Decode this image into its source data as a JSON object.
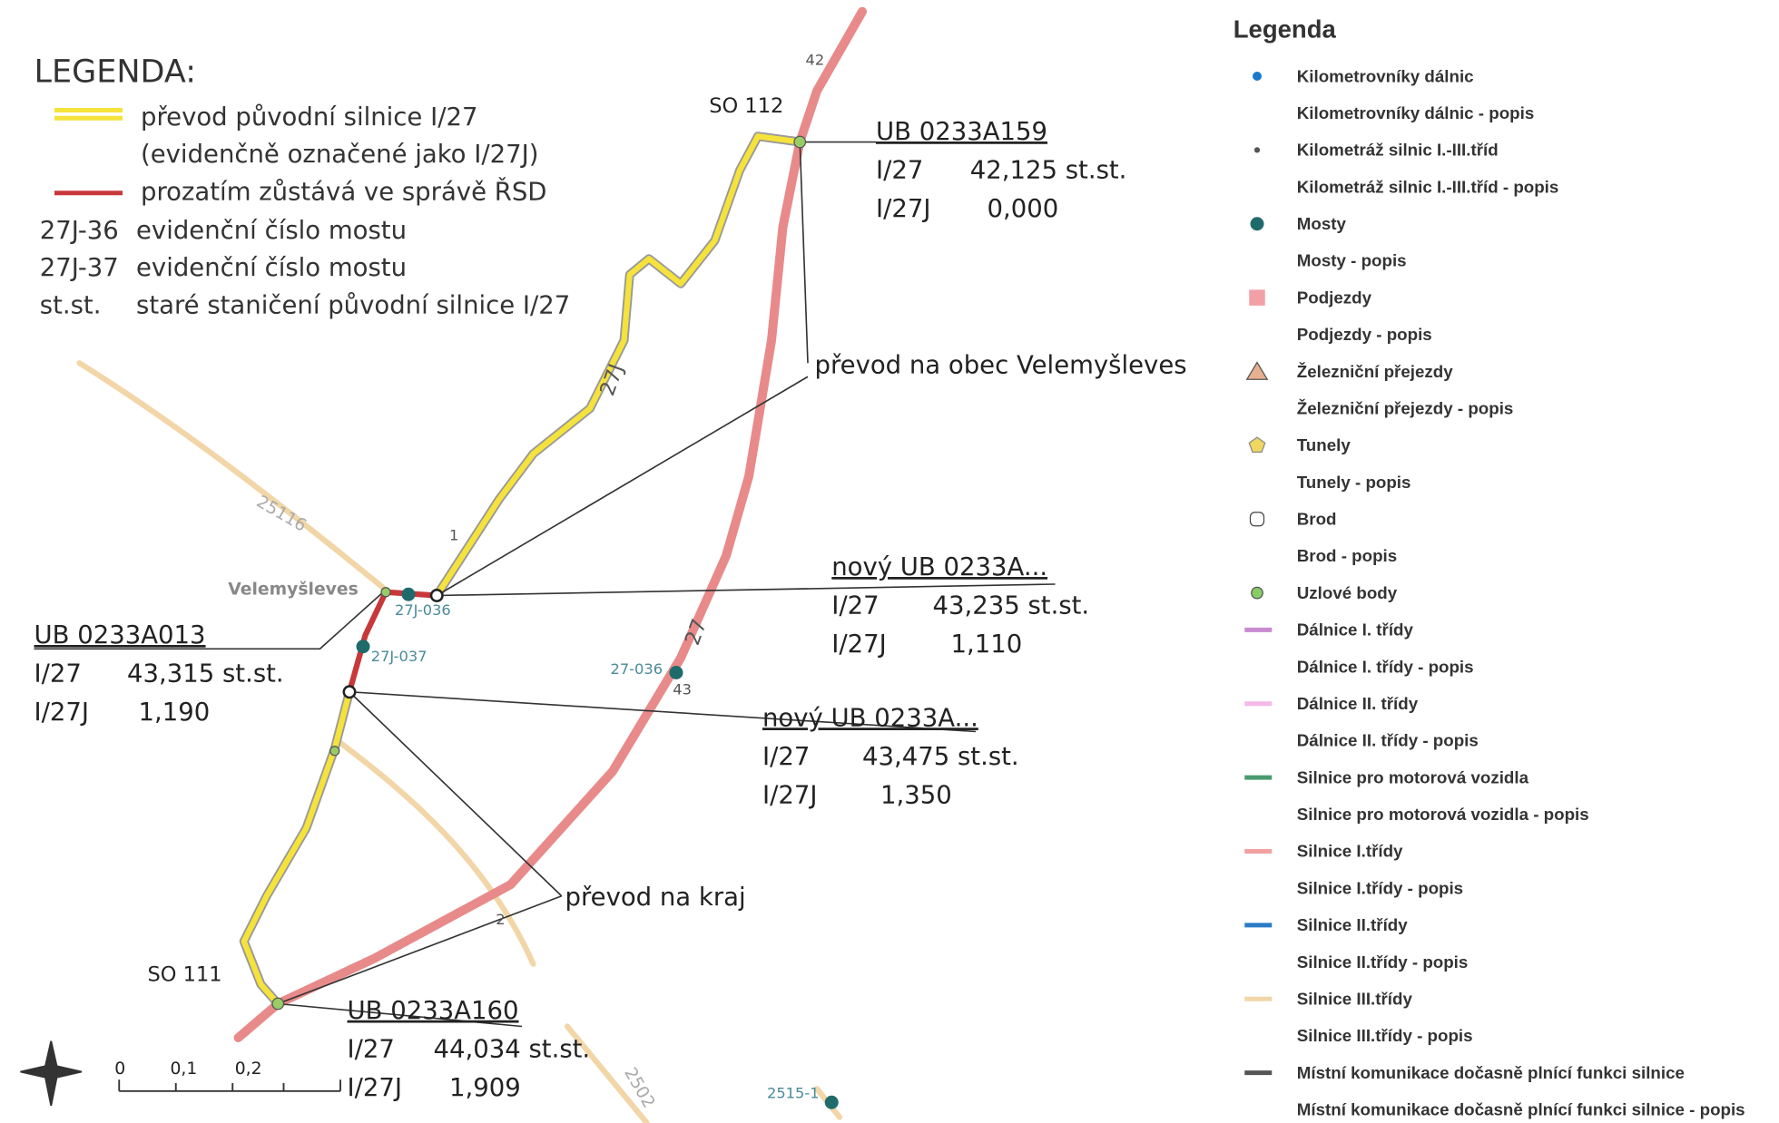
{
  "legend_left": {
    "title": "LEGENDA:",
    "items": [
      {
        "key": null,
        "text": "převod původní silnice I/27"
      },
      {
        "key": null,
        "text": "(evidenčně označené jako I/27J)"
      },
      {
        "key": null,
        "text": "prozatím zůstává ve správě ŘSD"
      },
      {
        "key": "27J-36",
        "text": "evidenční číslo mostu"
      },
      {
        "key": "27J-37",
        "text": "evidenční číslo mostu"
      },
      {
        "key": "st.st.",
        "text": "staré staničení původní silnice I/27"
      }
    ]
  },
  "map_labels": {
    "km_42": "42",
    "km_43": "43",
    "km_1": "1",
    "km_2": "2",
    "road_27j": "27J",
    "road_27": "27",
    "road_25116": "25116",
    "road_2502": "2502",
    "so_112": "SO 112",
    "so_111": "SO 111",
    "village": "Velemyšleves",
    "bridge_1": "27J-036",
    "bridge_2": "27J-037",
    "bridge_3": "27-036",
    "bridge_4": "2515-1"
  },
  "callouts": [
    {
      "title": "UB 0233A159",
      "rows": [
        [
          "I/27",
          "42,125 st.st."
        ],
        [
          "I/27J",
          "0,000"
        ]
      ]
    },
    {
      "title": "nový UB 0233A...",
      "rows": [
        [
          "I/27",
          "43,235 st.st."
        ],
        [
          "I/27J",
          "1,110"
        ]
      ]
    },
    {
      "title": "UB 0233A013",
      "rows": [
        [
          "I/27",
          "43,315 st.st."
        ],
        [
          "I/27J",
          "1,190"
        ]
      ]
    },
    {
      "title": "nový UB 0233A...",
      "rows": [
        [
          "I/27",
          "43,475 st.st."
        ],
        [
          "I/27J",
          "1,350"
        ]
      ]
    },
    {
      "title": "UB 0233A160",
      "rows": [
        [
          "I/27",
          "44,034 st.st."
        ],
        [
          "I/27J",
          "1,909"
        ]
      ]
    }
  ],
  "notes": [
    "převod na obec Velemyšleves",
    "převod na kraj"
  ],
  "scale": [
    "0",
    "0,1",
    "0,2"
  ],
  "legend_right": {
    "title": "Legenda",
    "items": [
      "Kilometrovníky dálnic",
      "Kilometrovníky dálnic - popis",
      "Kilometráž silnic I.-III.tříd",
      "Kilometráž silnic I.-III.tříd - popis",
      "Mosty",
      "Mosty - popis",
      "Podjezdy",
      "Podjezdy - popis",
      "Železniční přejezdy",
      "Železniční přejezdy - popis",
      "Tunely",
      "Tunely - popis",
      "Brod",
      "Brod - popis",
      "Uzlové body",
      "Dálnice I. třídy",
      "Dálnice I. třídy - popis",
      "Dálnice II. třídy",
      "Dálnice II. třídy - popis",
      "Silnice pro motorová vozidla",
      "Silnice pro motorová vozidla - popis",
      "Silnice I.třídy",
      "Silnice I.třídy - popis",
      "Silnice II.třídy",
      "Silnice II.třídy - popis",
      "Silnice III.třídy",
      "Silnice III.třídy - popis",
      "Místní komunikace dočasně plnící funkci silnice",
      "Místní komunikace dočasně plnící funkci silnice - popis"
    ]
  }
}
